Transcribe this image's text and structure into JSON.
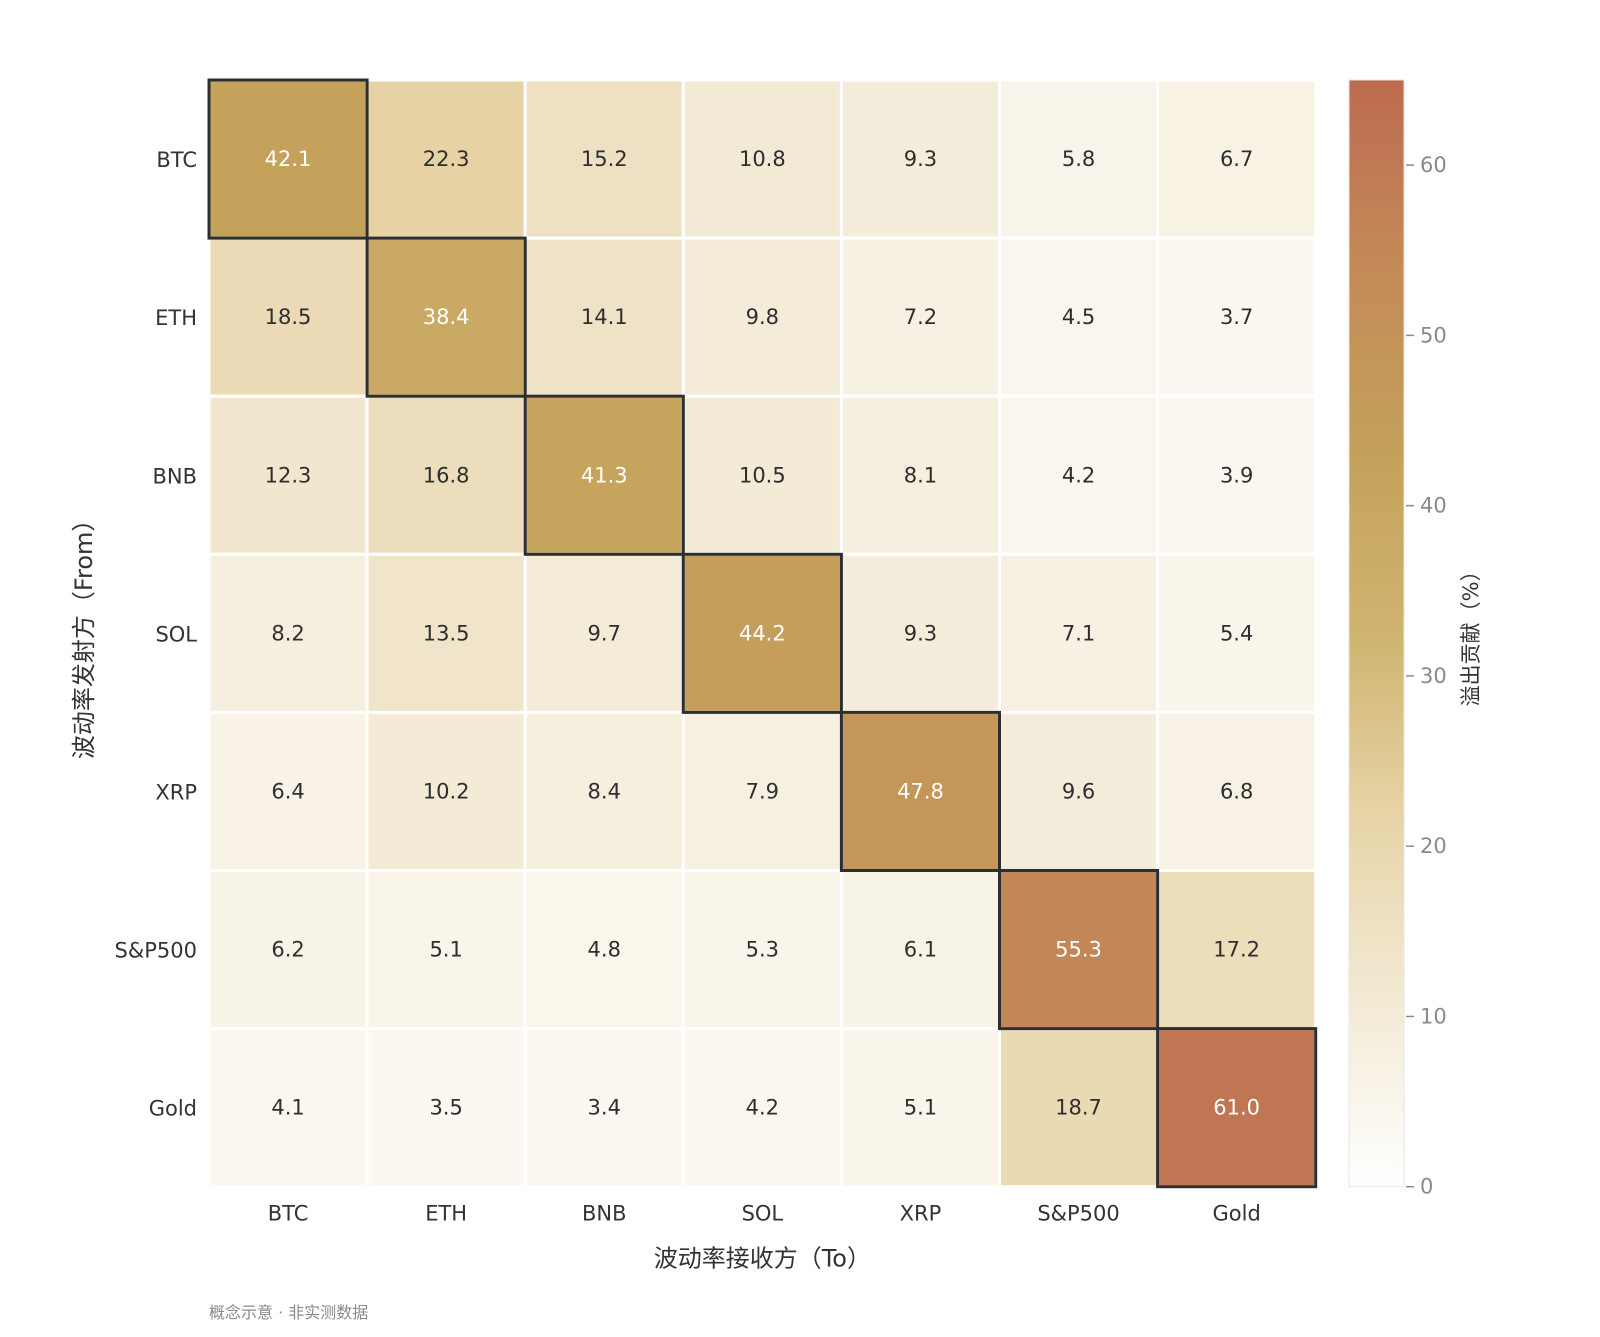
{
  "chart_data": {
    "type": "heatmap",
    "title": "",
    "xlabel": "波动率接收方（To）",
    "ylabel": "波动率发射方（From）",
    "x_categories": [
      "BTC",
      "ETH",
      "BNB",
      "SOL",
      "XRP",
      "S&P500",
      "Gold"
    ],
    "y_categories": [
      "BTC",
      "ETH",
      "BNB",
      "SOL",
      "XRP",
      "S&P500",
      "Gold"
    ],
    "values": [
      [
        42.1,
        22.3,
        15.2,
        10.8,
        9.3,
        5.8,
        6.7
      ],
      [
        18.5,
        38.4,
        14.1,
        9.8,
        7.2,
        4.5,
        3.7
      ],
      [
        12.3,
        16.8,
        41.3,
        10.5,
        8.1,
        4.2,
        3.9
      ],
      [
        8.2,
        13.5,
        9.7,
        44.2,
        9.3,
        7.1,
        5.4
      ],
      [
        6.4,
        10.2,
        8.4,
        7.9,
        47.8,
        9.6,
        6.8
      ],
      [
        6.2,
        5.1,
        4.8,
        5.3,
        6.1,
        55.3,
        17.2
      ],
      [
        4.1,
        3.5,
        3.4,
        4.2,
        5.1,
        18.7,
        61.0
      ]
    ],
    "highlight_diagonal": true,
    "colorbar": {
      "label": "溢出贡献（%）",
      "range": [
        0,
        65
      ],
      "ticks": [
        0,
        10,
        20,
        30,
        40,
        50,
        60
      ],
      "colors": [
        "#ffffff",
        "#f3ead5",
        "#e7d4a8",
        "#cfb46f",
        "#c4a05a",
        "#c48a58",
        "#bd6b50"
      ]
    },
    "grid": false
  },
  "footnote": "概念示意 · 非实测数据"
}
